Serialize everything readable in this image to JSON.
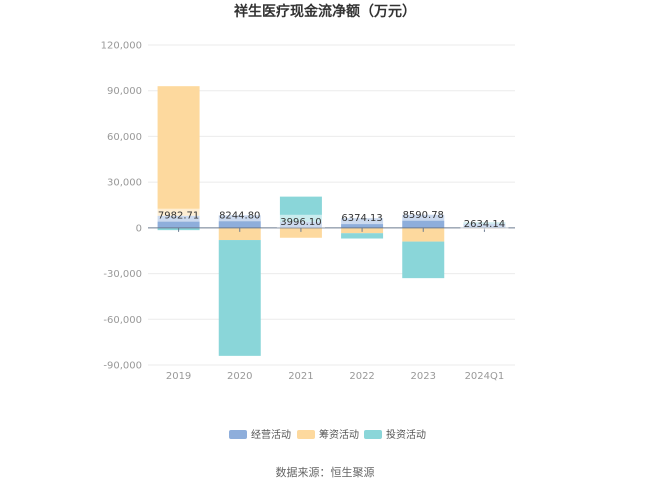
{
  "chart_data": {
    "type": "bar",
    "stacked": true,
    "title": "祥生医疗现金流净额（万元）",
    "categories": [
      "2019",
      "2020",
      "2021",
      "2022",
      "2023",
      "2024Q1"
    ],
    "ylim": [
      -90000,
      120000
    ],
    "yticks": [
      120000,
      90000,
      60000,
      30000,
      0,
      -30000,
      -60000,
      -90000
    ],
    "ytick_labels": [
      "120,000",
      "90,000",
      "60,000",
      "30,000",
      "0",
      "-30,000",
      "-60,000",
      "-90,000"
    ],
    "grid": true,
    "legend_position": "bottom",
    "series": [
      {
        "name": "经营活动",
        "color": "#8eaedb",
        "values": [
          7982.71,
          8244.8,
          3996.1,
          6374.13,
          8590.78,
          2634.14
        ]
      },
      {
        "name": "筹资活动",
        "color": "#fdd99e",
        "values": [
          85000,
          -8000,
          -6500,
          -3500,
          -9000,
          -500
        ]
      },
      {
        "name": "投资活动",
        "color": "#8ad6d9",
        "values": [
          -1500,
          -76000,
          16500,
          -3500,
          -24000,
          1000
        ]
      }
    ],
    "data_labels": [
      "7982.71",
      "8244.80",
      "3996.10",
      "6374.13",
      "8590.78",
      "2634.14"
    ]
  },
  "source": "数据来源：恒生聚源"
}
